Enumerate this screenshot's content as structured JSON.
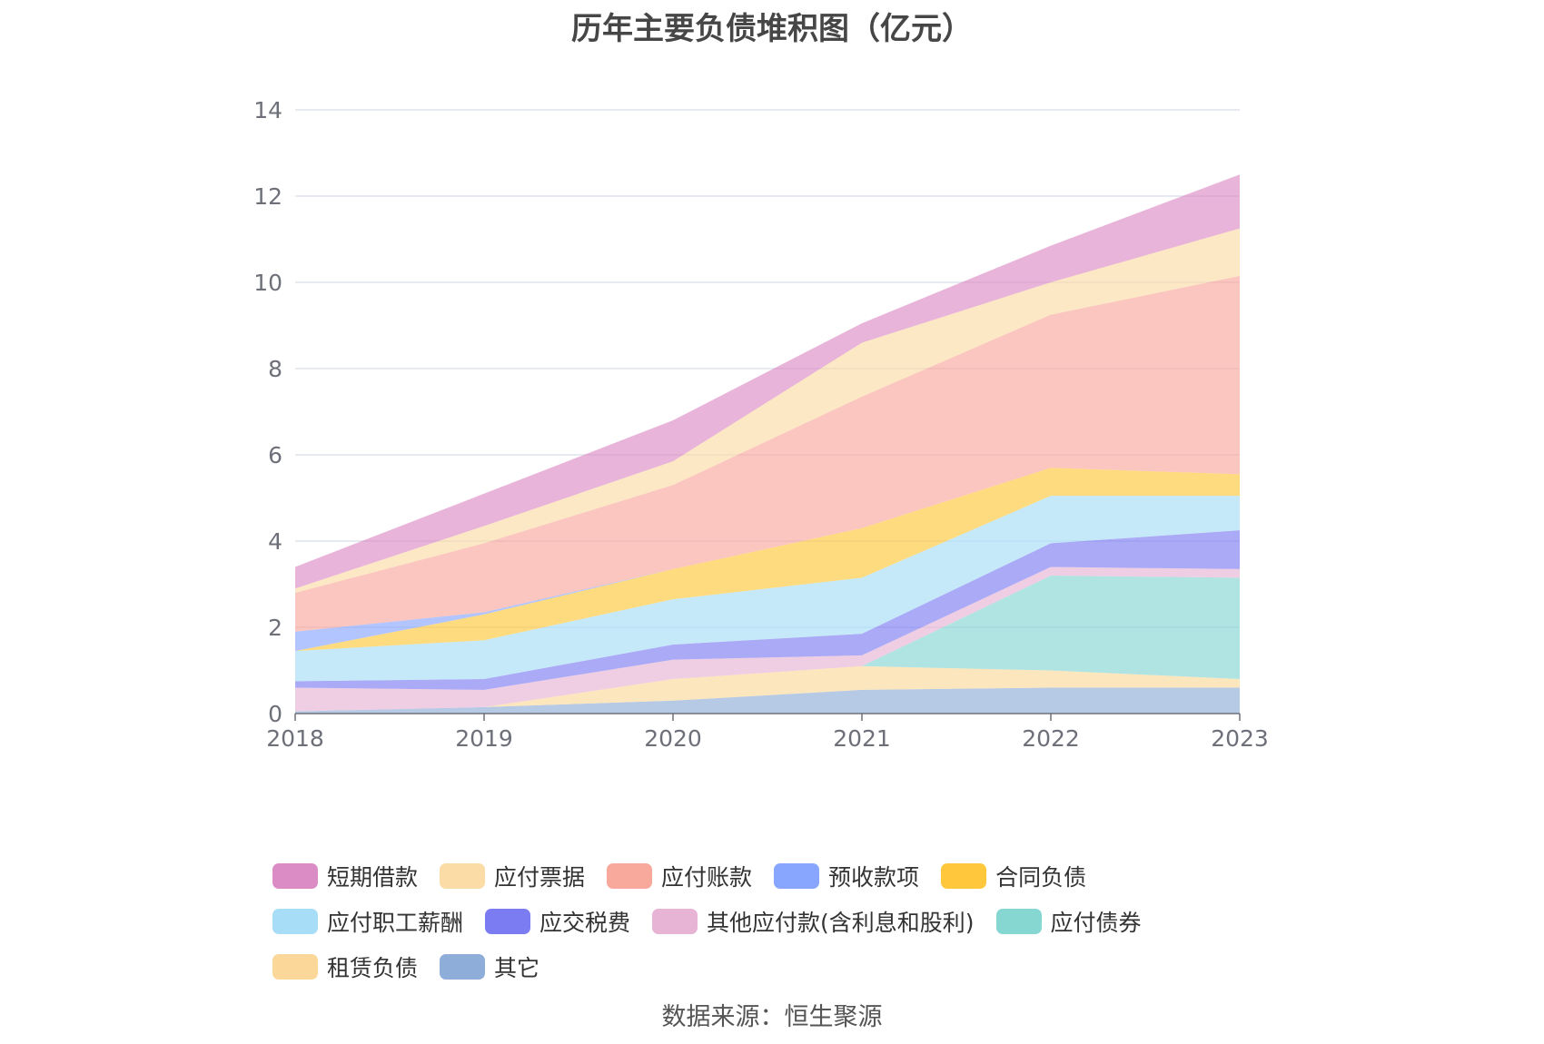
{
  "chart_data": {
    "type": "area",
    "title": "历年主要负债堆积图（亿元）",
    "x": [
      "2018",
      "2019",
      "2020",
      "2021",
      "2022",
      "2023"
    ],
    "ylim": [
      0,
      14
    ],
    "yticks": [
      0,
      2,
      4,
      6,
      8,
      10,
      12,
      14
    ],
    "grid": true,
    "legend_position": "bottom",
    "stacked": true,
    "series": [
      {
        "name": "其它",
        "color": "#8fadd9",
        "values": [
          0.05,
          0.15,
          0.3,
          0.55,
          0.6,
          0.6
        ]
      },
      {
        "name": "租赁负债",
        "color": "#fbd89a",
        "values": [
          0,
          0,
          0.5,
          0.55,
          0.4,
          0.2
        ]
      },
      {
        "name": "应付债券",
        "color": "#86d6d2",
        "values": [
          0,
          0,
          0,
          0,
          2.2,
          2.35
        ]
      },
      {
        "name": "其他应付款(含利息和股利)",
        "color": "#e7b4d6",
        "values": [
          0.55,
          0.4,
          0.45,
          0.25,
          0.2,
          0.2
        ]
      },
      {
        "name": "应交税费",
        "color": "#7c7cf2",
        "values": [
          0.15,
          0.25,
          0.35,
          0.5,
          0.55,
          0.9
        ]
      },
      {
        "name": "应付职工薪酬",
        "color": "#a8ddf7",
        "values": [
          0.7,
          0.9,
          1.05,
          1.3,
          1.1,
          0.8
        ]
      },
      {
        "name": "合同负债",
        "color": "#ffc83c",
        "values": [
          0,
          0.6,
          0.7,
          1.15,
          0.65,
          0.5
        ]
      },
      {
        "name": "预收款项",
        "color": "#89a6ff",
        "values": [
          0.45,
          0.05,
          0,
          0,
          0,
          0
        ]
      },
      {
        "name": "应付账款",
        "color": "#f9a89c",
        "values": [
          0.9,
          1.6,
          1.95,
          3.05,
          3.55,
          4.6
        ]
      },
      {
        "name": "应付票据",
        "color": "#fbdca6",
        "values": [
          0.1,
          0.4,
          0.55,
          1.25,
          0.75,
          1.1
        ]
      },
      {
        "name": "短期借款",
        "color": "#db8cc5",
        "values": [
          0.5,
          0.75,
          0.95,
          0.45,
          0.85,
          1.25
        ]
      }
    ]
  },
  "legend_order": [
    "短期借款",
    "应付票据",
    "应付账款",
    "预收款项",
    "合同负债",
    "应付职工薪酬",
    "应交税费",
    "其他应付款(含利息和股利)",
    "应付债券",
    "租赁负债",
    "其它"
  ],
  "source_text": "数据来源：恒生聚源",
  "colors": {
    "grid": "#e0e3ee",
    "axis": "#6e7079",
    "tick_label": "#6e7079"
  }
}
